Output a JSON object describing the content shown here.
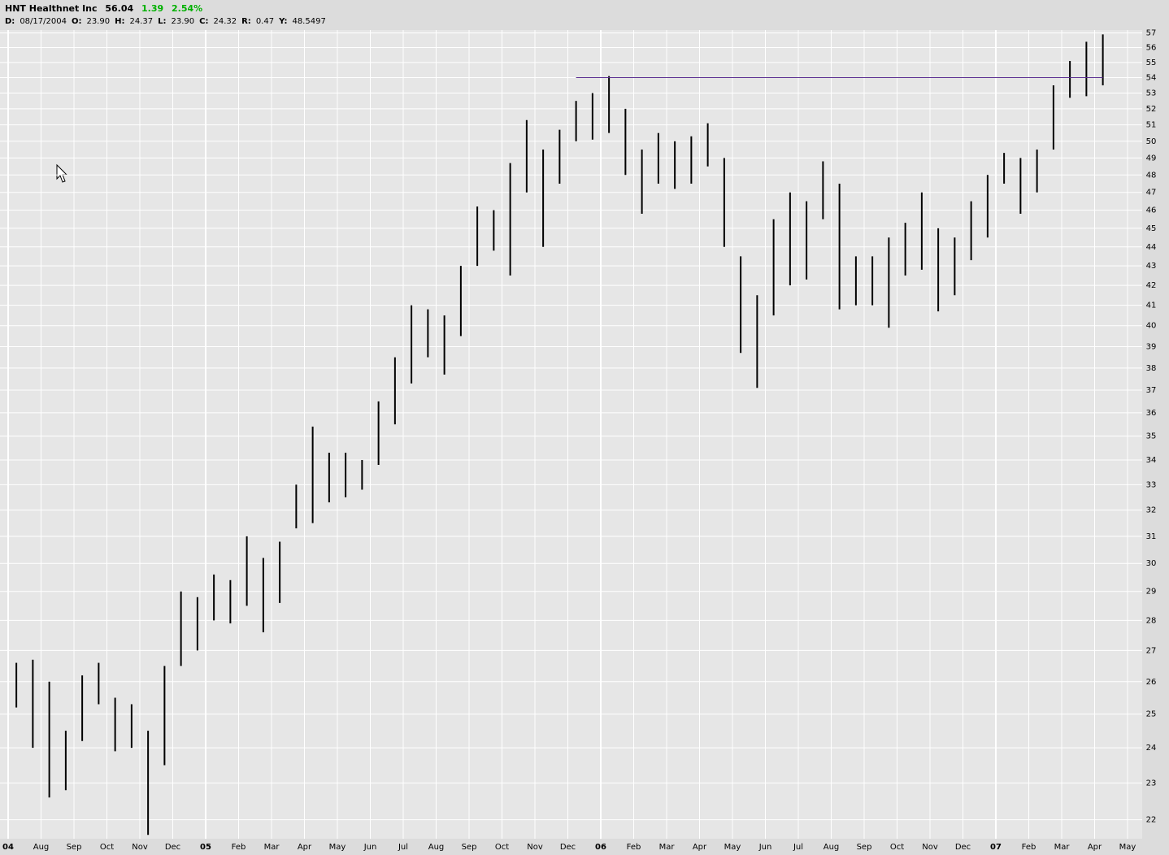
{
  "chart_data": {
    "type": "ohlc",
    "title": "HNT Healthnet Inc",
    "last": "56.04",
    "change": "1.39",
    "change_pct": "2.54%",
    "fields": [
      {
        "label": "D:",
        "value": "08/17/2004"
      },
      {
        "label": "O:",
        "value": "23.90"
      },
      {
        "label": "H:",
        "value": "24.37"
      },
      {
        "label": "L:",
        "value": "23.90"
      },
      {
        "label": "C:",
        "value": "24.32"
      },
      {
        "label": "R:",
        "value": "0.47"
      },
      {
        "label": "Y:",
        "value": "48.5497"
      }
    ],
    "categories": [
      "04",
      null,
      "Aug",
      null,
      "Sep",
      null,
      "Oct",
      null,
      "Nov",
      null,
      "Dec",
      null,
      "05",
      null,
      "Feb",
      null,
      "Mar",
      null,
      "Apr",
      null,
      "May",
      null,
      "Jun",
      null,
      "Jul",
      null,
      "Aug",
      null,
      "Sep",
      null,
      "Oct",
      null,
      "Nov",
      null,
      "Dec",
      null,
      "06",
      null,
      "Feb",
      null,
      "Mar",
      null,
      "Apr",
      null,
      "May",
      null,
      "Jun",
      null,
      "Jul",
      null,
      "Aug",
      null,
      "Sep",
      null,
      "Oct",
      null,
      "Nov",
      null,
      "Dec",
      null,
      "07",
      null,
      "Feb",
      null,
      "Mar",
      null,
      "Apr",
      null,
      "May",
      null
    ],
    "series": [
      {
        "color": "#000000",
        "high": [
          26.6,
          26.7,
          26.0,
          24.5,
          26.2,
          26.6,
          25.5,
          25.3,
          24.5,
          26.5,
          29.0,
          28.8,
          29.6,
          29.4,
          31.0,
          30.2,
          30.8,
          33.0,
          35.4,
          34.3,
          34.3,
          34.0,
          36.5,
          38.5,
          41.0,
          40.8,
          40.5,
          43.0,
          46.2,
          46.0,
          48.7,
          51.3,
          49.5,
          50.7,
          52.5,
          53.0,
          54.1,
          52.0,
          49.5,
          50.5,
          50.0,
          50.3,
          51.1,
          49.0,
          43.5,
          41.5,
          45.5,
          47.0,
          46.5,
          48.8,
          47.5,
          43.5,
          43.5,
          44.5,
          45.3,
          47.0,
          45.0,
          44.5,
          46.5,
          48.0,
          49.3,
          49.0,
          49.5,
          53.5,
          55.1,
          56.4,
          56.9,
          null,
          null,
          null
        ],
        "low": [
          25.2,
          24.0,
          22.6,
          22.8,
          24.2,
          25.3,
          23.9,
          24.0,
          21.6,
          23.5,
          26.5,
          27.0,
          28.0,
          27.9,
          28.5,
          27.6,
          28.6,
          31.3,
          31.5,
          32.3,
          32.5,
          32.8,
          33.8,
          35.5,
          37.3,
          38.5,
          37.7,
          39.5,
          43.0,
          43.8,
          42.5,
          47.0,
          44.0,
          47.5,
          50.0,
          50.1,
          50.5,
          48.0,
          45.8,
          47.5,
          47.2,
          47.5,
          48.5,
          44.0,
          38.7,
          37.1,
          40.5,
          42.0,
          42.3,
          45.5,
          40.8,
          41.0,
          41.0,
          39.9,
          42.5,
          42.8,
          40.7,
          41.5,
          43.3,
          44.5,
          47.5,
          45.8,
          47.0,
          49.5,
          52.7,
          52.8,
          53.5,
          null,
          null,
          null
        ]
      }
    ],
    "log_scale": true,
    "ylim": [
      21.5,
      57.2
    ],
    "yticks": [
      22,
      23,
      24,
      25,
      26,
      27,
      28,
      29,
      30,
      31,
      32,
      33,
      34,
      35,
      36,
      37,
      38,
      39,
      40,
      41,
      42,
      43,
      44,
      45,
      46,
      47,
      48,
      49,
      50,
      51,
      52,
      53,
      54,
      55,
      56,
      57
    ],
    "grid": true,
    "reference_line": {
      "value": 54,
      "color": "#5a2d91"
    }
  }
}
